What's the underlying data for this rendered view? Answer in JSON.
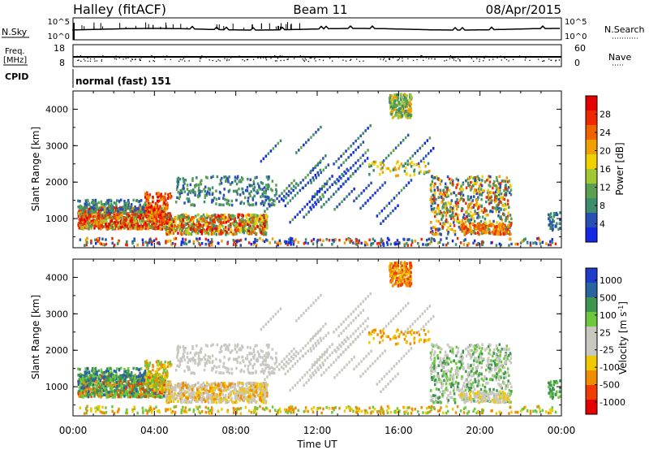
{
  "header": {
    "station": "Halley (fitACF)",
    "beam": "Beam 11",
    "date": "08/Apr/2015"
  },
  "strips": {
    "nsky_label": "N.Sky",
    "nsky_ticks": [
      "10^5",
      "10^0"
    ],
    "nsearch_label": "N.Search",
    "nsearch_ticks": [
      "10^5",
      "10^0"
    ],
    "freq_label": "Freq.",
    "freq_unit": "[MHz]",
    "freq_ticks": [
      "18",
      "8"
    ],
    "nave_label": "Nave",
    "nave_ticks": [
      "60",
      "0"
    ],
    "cpid_label": "CPID",
    "cpid_value": "normal (fast) 151"
  },
  "colors": {
    "power_scale": [
      "#1428e6",
      "#2850b4",
      "#3c8c6e",
      "#5aa050",
      "#a0c832",
      "#f0d200",
      "#f0a000",
      "#f06400",
      "#f02800",
      "#e60000"
    ],
    "velocity_scale": [
      "#e60000",
      "#f03c00",
      "#f08c00",
      "#f0c800",
      "#c8c8c0",
      "#c8c8c0",
      "#6ec83c",
      "#3c9650",
      "#2864a0",
      "#1e3cc8"
    ]
  },
  "chart_data": [
    {
      "type": "heatmap",
      "name": "power",
      "ylabel": "Slant Range [km]",
      "x_range_hours": [
        0,
        24
      ],
      "ylim": [
        200,
        4500
      ],
      "y_ticks": [
        "1000",
        "2000",
        "3000",
        "4000"
      ],
      "colorbar_label": "Power [dB]",
      "colorbar_ticks": [
        "4",
        "8",
        "12",
        "16",
        "20",
        "24",
        "28"
      ],
      "colorbar_range": [
        0,
        32
      ],
      "features": [
        {
          "t": [
            0.2,
            4.5
          ],
          "range": [
            700,
            1400
          ],
          "level": "high"
        },
        {
          "t": [
            4.5,
            9.5
          ],
          "range": [
            600,
            1200
          ],
          "level": "medium"
        },
        {
          "t": [
            10,
            17
          ],
          "range": [
            800,
            3200
          ],
          "level": "low"
        },
        {
          "t": [
            15.5,
            16.5
          ],
          "range": [
            3800,
            4500
          ],
          "level": "medium"
        },
        {
          "t": [
            17.5,
            21.5
          ],
          "range": [
            600,
            2200
          ],
          "level": "medium"
        }
      ]
    },
    {
      "type": "heatmap",
      "name": "velocity",
      "ylabel": "Slant Range [km]",
      "xlabel": "Time UT",
      "x_ticks": [
        "00:00",
        "04:00",
        "08:00",
        "12:00",
        "16:00",
        "20:00",
        "00:00"
      ],
      "x_range_hours": [
        0,
        24
      ],
      "ylim": [
        200,
        4500
      ],
      "y_ticks": [
        "1000",
        "2000",
        "3000",
        "4000"
      ],
      "colorbar_label": "Velocity [m s",
      "colorbar_label_superscript": "-1",
      "colorbar_ticks": [
        "1000",
        "500",
        "100",
        "25",
        "-25",
        "-100",
        "-500",
        "-1000"
      ],
      "features": [
        {
          "t": [
            0.2,
            5
          ],
          "range": [
            700,
            1400
          ],
          "level": "mixed"
        },
        {
          "t": [
            5,
            10
          ],
          "range": [
            600,
            2000
          ],
          "level": "ground-scatter"
        },
        {
          "t": [
            10,
            17
          ],
          "range": [
            900,
            3500
          ],
          "level": "ground-scatter"
        },
        {
          "t": [
            15.5,
            16.5
          ],
          "range": [
            3800,
            4500
          ],
          "level": "negative"
        },
        {
          "t": [
            17.5,
            21.5
          ],
          "range": [
            600,
            2200
          ],
          "level": "positive"
        }
      ]
    }
  ]
}
